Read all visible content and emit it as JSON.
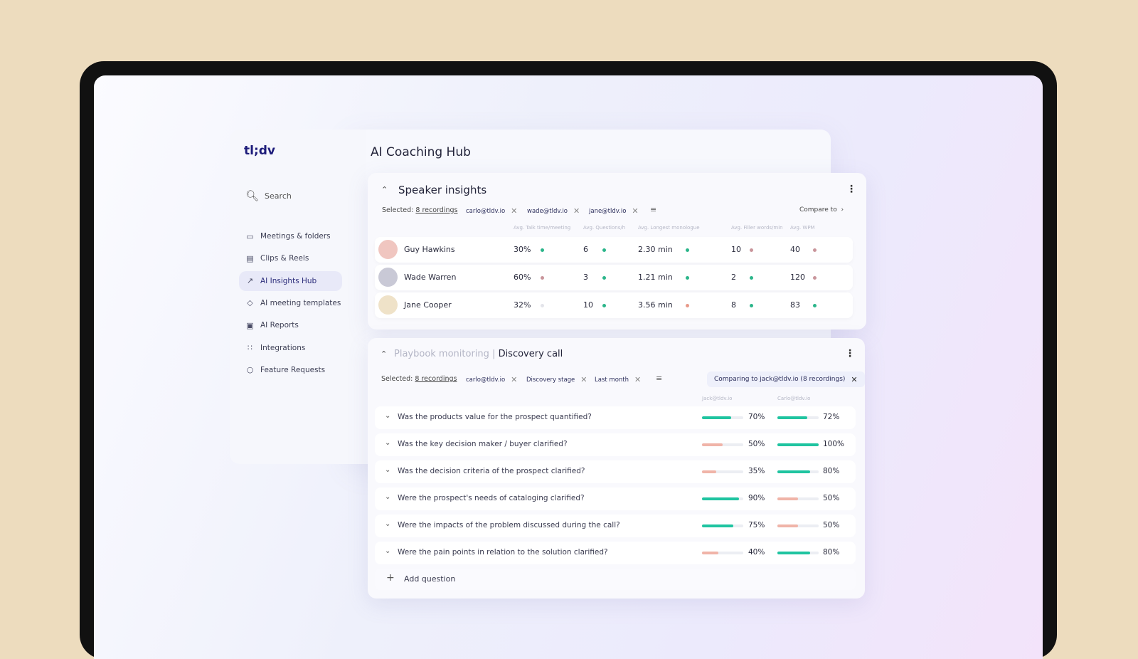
{
  "app": {
    "logo": "tl;dv",
    "page_title": "AI Coaching Hub"
  },
  "sidebar": {
    "search": "Search",
    "items": [
      {
        "label": "Meetings & folders",
        "icon": "video-camera-icon"
      },
      {
        "label": "Clips & Reels",
        "icon": "clapperboard-icon"
      },
      {
        "label": "AI Insights Hub",
        "icon": "chart-line-icon",
        "active": true
      },
      {
        "label": "AI meeting templates",
        "icon": "tag-icon"
      },
      {
        "label": "AI Reports",
        "icon": "report-icon"
      },
      {
        "label": "Integrations",
        "icon": "grid-icon"
      },
      {
        "label": "Feature Requests",
        "icon": "lightbulb-icon"
      }
    ]
  },
  "speaker": {
    "title": "Speaker insights",
    "selected_label": "Selected:",
    "selected_value": "8 recordings",
    "chips": [
      "carlo@tldv.io",
      "wade@tldv.io",
      "jane@tldv.io"
    ],
    "compare": "Compare to",
    "columns": [
      "Avg. Talk time/meeting",
      "Avg. Questions/h",
      "Avg. Longest monologue",
      "Avg. Filler words/min",
      "Avg. WPM"
    ],
    "rows": [
      {
        "name": "Guy Hawkins",
        "values": [
          "30%",
          "6",
          "2.30 min",
          "10",
          "40"
        ],
        "status": [
          "good",
          "good",
          "good",
          "bad",
          "bad"
        ]
      },
      {
        "name": "Wade Warren",
        "values": [
          "60%",
          "3",
          "1.21 min",
          "2",
          "120"
        ],
        "status": [
          "bad",
          "good",
          "good",
          "good",
          "bad"
        ]
      },
      {
        "name": "Jane Cooper",
        "values": [
          "32%",
          "10",
          "3.56 min",
          "8",
          "83"
        ],
        "status": [
          "neutral",
          "good",
          "warn",
          "good",
          "good"
        ]
      }
    ]
  },
  "playbook": {
    "title_muted": "Playbook monitoring",
    "title": "Discovery call",
    "selected_label": "Selected:",
    "selected_value": "8 recordings",
    "chips": [
      "carlo@tldv.io",
      "Discovery stage",
      "Last month"
    ],
    "comparing": "Comparing to jack@tldv.io (8 recordings)",
    "columns": [
      "Jack@tldv.io",
      "Carlo@tldv.io"
    ],
    "questions": [
      {
        "text": "Was the products value for the prospect quantified?",
        "a": 70,
        "b": 72
      },
      {
        "text": "Was the key decision maker / buyer clarified?",
        "a": 50,
        "b": 100
      },
      {
        "text": "Was the decision criteria of the prospect clarified?",
        "a": 35,
        "b": 80
      },
      {
        "text": "Were the prospect's needs of cataloging clarified?",
        "a": 90,
        "b": 50
      },
      {
        "text": "Were the impacts of the problem discussed during the call?",
        "a": 75,
        "b": 50
      },
      {
        "text": "Were the pain points in relation to the solution clarified?",
        "a": 40,
        "b": 80
      }
    ],
    "add_question": "Add question"
  },
  "colors": {
    "good": "#2bb58a",
    "bad": "#c9959b",
    "warn": "#e89a8a",
    "neutral": "#e3e4ea",
    "bar_good": "#1fc4a0",
    "bar_low": "#f0b4a8"
  }
}
